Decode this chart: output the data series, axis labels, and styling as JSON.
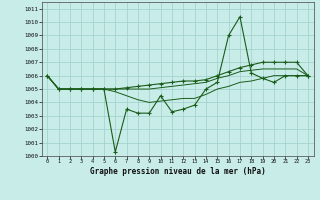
{
  "title": "Graphe pression niveau de la mer (hPa)",
  "bg_color": "#c8ece8",
  "grid_color": "#9ecfc8",
  "line_color": "#1a5c1a",
  "xlim": [
    -0.5,
    23.5
  ],
  "ylim": [
    1000,
    1011.5
  ],
  "xticks": [
    0,
    1,
    2,
    3,
    4,
    5,
    6,
    7,
    8,
    9,
    10,
    11,
    12,
    13,
    14,
    15,
    16,
    17,
    18,
    19,
    20,
    21,
    22,
    23
  ],
  "yticks": [
    1000,
    1001,
    1002,
    1003,
    1004,
    1005,
    1006,
    1007,
    1008,
    1009,
    1010,
    1011
  ],
  "series_main": {
    "x": [
      0,
      1,
      2,
      3,
      4,
      5,
      6,
      7,
      8,
      9,
      10,
      11,
      12,
      13,
      14,
      15,
      16,
      17,
      18,
      19,
      20,
      21,
      22,
      23
    ],
    "y": [
      1006,
      1005,
      1005,
      1005,
      1005,
      1005,
      1000.3,
      1003.5,
      1003.2,
      1003.2,
      1004.5,
      1003.3,
      1003.5,
      1003.8,
      1005.0,
      1005.5,
      1009.0,
      1010.4,
      1006.2,
      1005.8,
      1005.5,
      1006.0,
      1006.0,
      1006.0
    ]
  },
  "series_top": {
    "x": [
      0,
      1,
      2,
      3,
      4,
      5,
      6,
      7,
      8,
      9,
      10,
      11,
      12,
      13,
      14,
      15,
      16,
      17,
      18,
      19,
      20,
      21,
      22,
      23
    ],
    "y": [
      1006,
      1005,
      1005,
      1005,
      1005,
      1005,
      1005,
      1005.1,
      1005.2,
      1005.3,
      1005.4,
      1005.5,
      1005.6,
      1005.6,
      1005.7,
      1006.0,
      1006.3,
      1006.6,
      1006.8,
      1007.0,
      1007.0,
      1007.0,
      1007.0,
      1006.0
    ]
  },
  "series_mid": {
    "x": [
      0,
      1,
      2,
      3,
      4,
      5,
      6,
      7,
      8,
      9,
      10,
      11,
      12,
      13,
      14,
      15,
      16,
      17,
      18,
      19,
      20,
      21,
      22,
      23
    ],
    "y": [
      1006,
      1005,
      1005,
      1005,
      1005,
      1005,
      1005,
      1005,
      1005,
      1005,
      1005.1,
      1005.2,
      1005.3,
      1005.4,
      1005.5,
      1005.8,
      1006.0,
      1006.3,
      1006.4,
      1006.5,
      1006.5,
      1006.5,
      1006.5,
      1006.0
    ]
  },
  "series_low": {
    "x": [
      0,
      1,
      2,
      3,
      4,
      5,
      6,
      7,
      8,
      9,
      10,
      11,
      12,
      13,
      14,
      15,
      16,
      17,
      18,
      19,
      20,
      21,
      22,
      23
    ],
    "y": [
      1006,
      1005,
      1005,
      1005,
      1005,
      1005,
      1004.8,
      1004.5,
      1004.2,
      1004.0,
      1004.1,
      1004.2,
      1004.3,
      1004.3,
      1004.6,
      1005.0,
      1005.2,
      1005.5,
      1005.6,
      1005.8,
      1006.0,
      1006.0,
      1006.0,
      1006.0
    ]
  }
}
